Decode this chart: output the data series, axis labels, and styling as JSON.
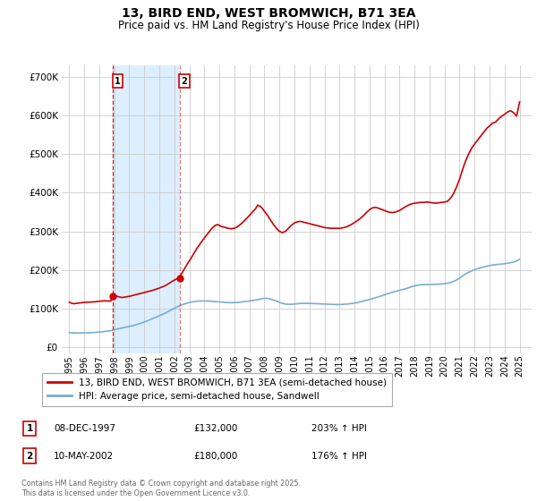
{
  "title": "13, BIRD END, WEST BROMWICH, B71 3EA",
  "subtitle": "Price paid vs. HM Land Registry's House Price Index (HPI)",
  "background_color": "#ffffff",
  "grid_color": "#cccccc",
  "red_line_color": "#cc0000",
  "blue_line_color": "#7aadcf",
  "shaded_region": [
    1997.92,
    2002.36
  ],
  "shaded_color": "#ddeeff",
  "marker1_x": 1997.92,
  "marker1_y": 132000,
  "marker2_x": 2002.36,
  "marker2_y": 180000,
  "yticks": [
    0,
    100000,
    200000,
    300000,
    400000,
    500000,
    600000,
    700000
  ],
  "ylim": [
    -15000,
    730000
  ],
  "xlim": [
    1994.5,
    2025.8
  ],
  "xticks": [
    1995,
    1996,
    1997,
    1998,
    1999,
    2000,
    2001,
    2002,
    2003,
    2004,
    2005,
    2006,
    2007,
    2008,
    2009,
    2010,
    2011,
    2012,
    2013,
    2014,
    2015,
    2016,
    2017,
    2018,
    2019,
    2020,
    2021,
    2022,
    2023,
    2024,
    2025
  ],
  "legend_label_red": "13, BIRD END, WEST BROMWICH, B71 3EA (semi-detached house)",
  "legend_label_blue": "HPI: Average price, semi-detached house, Sandwell",
  "annotation1_label": "1",
  "annotation1_date": "08-DEC-1997",
  "annotation1_price": "£132,000",
  "annotation1_pct": "203% ↑ HPI",
  "annotation2_label": "2",
  "annotation2_date": "10-MAY-2002",
  "annotation2_price": "£180,000",
  "annotation2_pct": "176% ↑ HPI",
  "footer": "Contains HM Land Registry data © Crown copyright and database right 2025.\nThis data is licensed under the Open Government Licence v3.0.",
  "red_hpi_data": [
    [
      1995.0,
      117000
    ],
    [
      1995.1,
      115000
    ],
    [
      1995.3,
      113000
    ],
    [
      1995.5,
      114000
    ],
    [
      1995.7,
      115000
    ],
    [
      1995.9,
      116000
    ],
    [
      1996.1,
      116500
    ],
    [
      1996.3,
      117000
    ],
    [
      1996.5,
      117500
    ],
    [
      1996.7,
      118000
    ],
    [
      1996.9,
      119000
    ],
    [
      1997.0,
      119500
    ],
    [
      1997.2,
      120000
    ],
    [
      1997.4,
      120500
    ],
    [
      1997.6,
      120000
    ],
    [
      1997.75,
      119500
    ],
    [
      1997.92,
      132000
    ],
    [
      1998.1,
      133000
    ],
    [
      1998.3,
      131000
    ],
    [
      1998.5,
      129000
    ],
    [
      1998.7,
      130000
    ],
    [
      1998.9,
      131500
    ],
    [
      1999.1,
      133000
    ],
    [
      1999.3,
      135000
    ],
    [
      1999.5,
      137000
    ],
    [
      1999.7,
      139000
    ],
    [
      1999.9,
      141000
    ],
    [
      2000.1,
      143000
    ],
    [
      2000.3,
      145000
    ],
    [
      2000.5,
      147000
    ],
    [
      2000.7,
      149500
    ],
    [
      2000.9,
      152000
    ],
    [
      2001.1,
      155000
    ],
    [
      2001.3,
      158000
    ],
    [
      2001.5,
      162000
    ],
    [
      2001.7,
      167000
    ],
    [
      2001.9,
      172000
    ],
    [
      2002.1,
      176000
    ],
    [
      2002.36,
      180000
    ],
    [
      2002.5,
      192000
    ],
    [
      2002.7,
      205000
    ],
    [
      2002.9,
      218000
    ],
    [
      2003.1,
      230000
    ],
    [
      2003.3,
      243000
    ],
    [
      2003.5,
      256000
    ],
    [
      2003.7,
      267000
    ],
    [
      2003.9,
      278000
    ],
    [
      2004.1,
      288000
    ],
    [
      2004.3,
      298000
    ],
    [
      2004.5,
      308000
    ],
    [
      2004.7,
      315000
    ],
    [
      2004.9,
      318000
    ],
    [
      2005.0,
      315000
    ],
    [
      2005.2,
      312000
    ],
    [
      2005.4,
      310000
    ],
    [
      2005.6,
      308000
    ],
    [
      2005.8,
      307000
    ],
    [
      2006.0,
      308000
    ],
    [
      2006.2,
      312000
    ],
    [
      2006.4,
      318000
    ],
    [
      2006.6,
      325000
    ],
    [
      2006.8,
      333000
    ],
    [
      2007.0,
      341000
    ],
    [
      2007.2,
      350000
    ],
    [
      2007.4,
      358000
    ],
    [
      2007.55,
      368000
    ],
    [
      2007.7,
      365000
    ],
    [
      2007.85,
      360000
    ],
    [
      2008.0,
      352000
    ],
    [
      2008.2,
      342000
    ],
    [
      2008.4,
      330000
    ],
    [
      2008.6,
      318000
    ],
    [
      2008.8,
      308000
    ],
    [
      2009.0,
      300000
    ],
    [
      2009.2,
      297000
    ],
    [
      2009.4,
      300000
    ],
    [
      2009.6,
      308000
    ],
    [
      2009.8,
      316000
    ],
    [
      2010.0,
      322000
    ],
    [
      2010.2,
      325000
    ],
    [
      2010.4,
      326000
    ],
    [
      2010.6,
      324000
    ],
    [
      2010.8,
      322000
    ],
    [
      2011.0,
      320000
    ],
    [
      2011.2,
      318000
    ],
    [
      2011.4,
      316000
    ],
    [
      2011.6,
      314000
    ],
    [
      2011.8,
      312000
    ],
    [
      2012.0,
      310000
    ],
    [
      2012.2,
      309000
    ],
    [
      2012.4,
      308000
    ],
    [
      2012.6,
      308000
    ],
    [
      2012.8,
      308000
    ],
    [
      2013.0,
      308000
    ],
    [
      2013.2,
      309000
    ],
    [
      2013.4,
      311000
    ],
    [
      2013.6,
      314000
    ],
    [
      2013.8,
      318000
    ],
    [
      2014.0,
      323000
    ],
    [
      2014.2,
      328000
    ],
    [
      2014.4,
      334000
    ],
    [
      2014.6,
      341000
    ],
    [
      2014.8,
      349000
    ],
    [
      2015.0,
      356000
    ],
    [
      2015.2,
      361000
    ],
    [
      2015.4,
      362000
    ],
    [
      2015.6,
      360000
    ],
    [
      2015.8,
      357000
    ],
    [
      2016.0,
      354000
    ],
    [
      2016.2,
      351000
    ],
    [
      2016.4,
      349000
    ],
    [
      2016.6,
      349000
    ],
    [
      2016.8,
      351000
    ],
    [
      2017.0,
      354000
    ],
    [
      2017.2,
      359000
    ],
    [
      2017.4,
      364000
    ],
    [
      2017.6,
      368000
    ],
    [
      2017.8,
      371000
    ],
    [
      2018.0,
      373000
    ],
    [
      2018.2,
      374000
    ],
    [
      2018.4,
      375000
    ],
    [
      2018.6,
      375000
    ],
    [
      2018.8,
      376000
    ],
    [
      2019.0,
      375000
    ],
    [
      2019.2,
      374000
    ],
    [
      2019.4,
      373000
    ],
    [
      2019.6,
      374000
    ],
    [
      2019.8,
      375000
    ],
    [
      2020.0,
      376000
    ],
    [
      2020.2,
      378000
    ],
    [
      2020.4,
      386000
    ],
    [
      2020.6,
      398000
    ],
    [
      2020.8,
      415000
    ],
    [
      2021.0,
      435000
    ],
    [
      2021.2,
      460000
    ],
    [
      2021.4,
      482000
    ],
    [
      2021.6,
      500000
    ],
    [
      2021.8,
      515000
    ],
    [
      2022.0,
      526000
    ],
    [
      2022.2,
      536000
    ],
    [
      2022.4,
      546000
    ],
    [
      2022.6,
      556000
    ],
    [
      2022.8,
      566000
    ],
    [
      2023.0,
      573000
    ],
    [
      2023.2,
      580000
    ],
    [
      2023.4,
      583000
    ],
    [
      2023.6,
      591000
    ],
    [
      2023.8,
      598000
    ],
    [
      2024.0,
      603000
    ],
    [
      2024.2,
      609000
    ],
    [
      2024.4,
      612000
    ],
    [
      2024.6,
      607000
    ],
    [
      2024.8,
      598000
    ],
    [
      2025.0,
      635000
    ]
  ],
  "blue_hpi_data": [
    [
      1995.0,
      38000
    ],
    [
      1995.3,
      37500
    ],
    [
      1995.6,
      37200
    ],
    [
      1995.9,
      37400
    ],
    [
      1996.2,
      37800
    ],
    [
      1996.5,
      38300
    ],
    [
      1996.8,
      39000
    ],
    [
      1997.1,
      40000
    ],
    [
      1997.4,
      41500
    ],
    [
      1997.7,
      43000
    ],
    [
      1997.92,
      44500
    ],
    [
      1998.0,
      46000
    ],
    [
      1998.3,
      48500
    ],
    [
      1998.6,
      51000
    ],
    [
      1998.9,
      53500
    ],
    [
      1999.2,
      56000
    ],
    [
      1999.5,
      59000
    ],
    [
      1999.8,
      63000
    ],
    [
      2000.1,
      67000
    ],
    [
      2000.4,
      72000
    ],
    [
      2000.7,
      77000
    ],
    [
      2001.0,
      82000
    ],
    [
      2001.3,
      87000
    ],
    [
      2001.6,
      93000
    ],
    [
      2001.9,
      99000
    ],
    [
      2002.2,
      105000
    ],
    [
      2002.5,
      110000
    ],
    [
      2002.8,
      114000
    ],
    [
      2003.1,
      117000
    ],
    [
      2003.4,
      119000
    ],
    [
      2003.7,
      120000
    ],
    [
      2004.0,
      120000
    ],
    [
      2004.3,
      120000
    ],
    [
      2004.6,
      119000
    ],
    [
      2004.9,
      118000
    ],
    [
      2005.2,
      117000
    ],
    [
      2005.5,
      116000
    ],
    [
      2005.8,
      115500
    ],
    [
      2006.1,
      116000
    ],
    [
      2006.4,
      117000
    ],
    [
      2006.7,
      118500
    ],
    [
      2007.0,
      120000
    ],
    [
      2007.3,
      122000
    ],
    [
      2007.6,
      124000
    ],
    [
      2007.9,
      126500
    ],
    [
      2008.2,
      127000
    ],
    [
      2008.5,
      124000
    ],
    [
      2008.8,
      120000
    ],
    [
      2009.1,
      115000
    ],
    [
      2009.4,
      112000
    ],
    [
      2009.7,
      111500
    ],
    [
      2010.0,
      112000
    ],
    [
      2010.3,
      113500
    ],
    [
      2010.6,
      114000
    ],
    [
      2010.9,
      114000
    ],
    [
      2011.2,
      113500
    ],
    [
      2011.5,
      113000
    ],
    [
      2011.8,
      112500
    ],
    [
      2012.1,
      112000
    ],
    [
      2012.4,
      111500
    ],
    [
      2012.7,
      111000
    ],
    [
      2013.0,
      111000
    ],
    [
      2013.3,
      111500
    ],
    [
      2013.6,
      112500
    ],
    [
      2013.9,
      114000
    ],
    [
      2014.2,
      116000
    ],
    [
      2014.5,
      119000
    ],
    [
      2014.8,
      122000
    ],
    [
      2015.1,
      125000
    ],
    [
      2015.4,
      128500
    ],
    [
      2015.7,
      132000
    ],
    [
      2016.0,
      136000
    ],
    [
      2016.3,
      140000
    ],
    [
      2016.6,
      143500
    ],
    [
      2016.9,
      146500
    ],
    [
      2017.2,
      149500
    ],
    [
      2017.5,
      153000
    ],
    [
      2017.8,
      157000
    ],
    [
      2018.1,
      160000
    ],
    [
      2018.4,
      162000
    ],
    [
      2018.7,
      162500
    ],
    [
      2019.0,
      162500
    ],
    [
      2019.3,
      163000
    ],
    [
      2019.6,
      163500
    ],
    [
      2019.9,
      164500
    ],
    [
      2020.2,
      166000
    ],
    [
      2020.5,
      169000
    ],
    [
      2020.8,
      174000
    ],
    [
      2021.1,
      182000
    ],
    [
      2021.4,
      190000
    ],
    [
      2021.7,
      196000
    ],
    [
      2022.0,
      201000
    ],
    [
      2022.3,
      205000
    ],
    [
      2022.6,
      208000
    ],
    [
      2022.9,
      211000
    ],
    [
      2023.2,
      213000
    ],
    [
      2023.5,
      214500
    ],
    [
      2023.8,
      215500
    ],
    [
      2024.1,
      217000
    ],
    [
      2024.4,
      219000
    ],
    [
      2024.7,
      222000
    ],
    [
      2025.0,
      228000
    ]
  ]
}
